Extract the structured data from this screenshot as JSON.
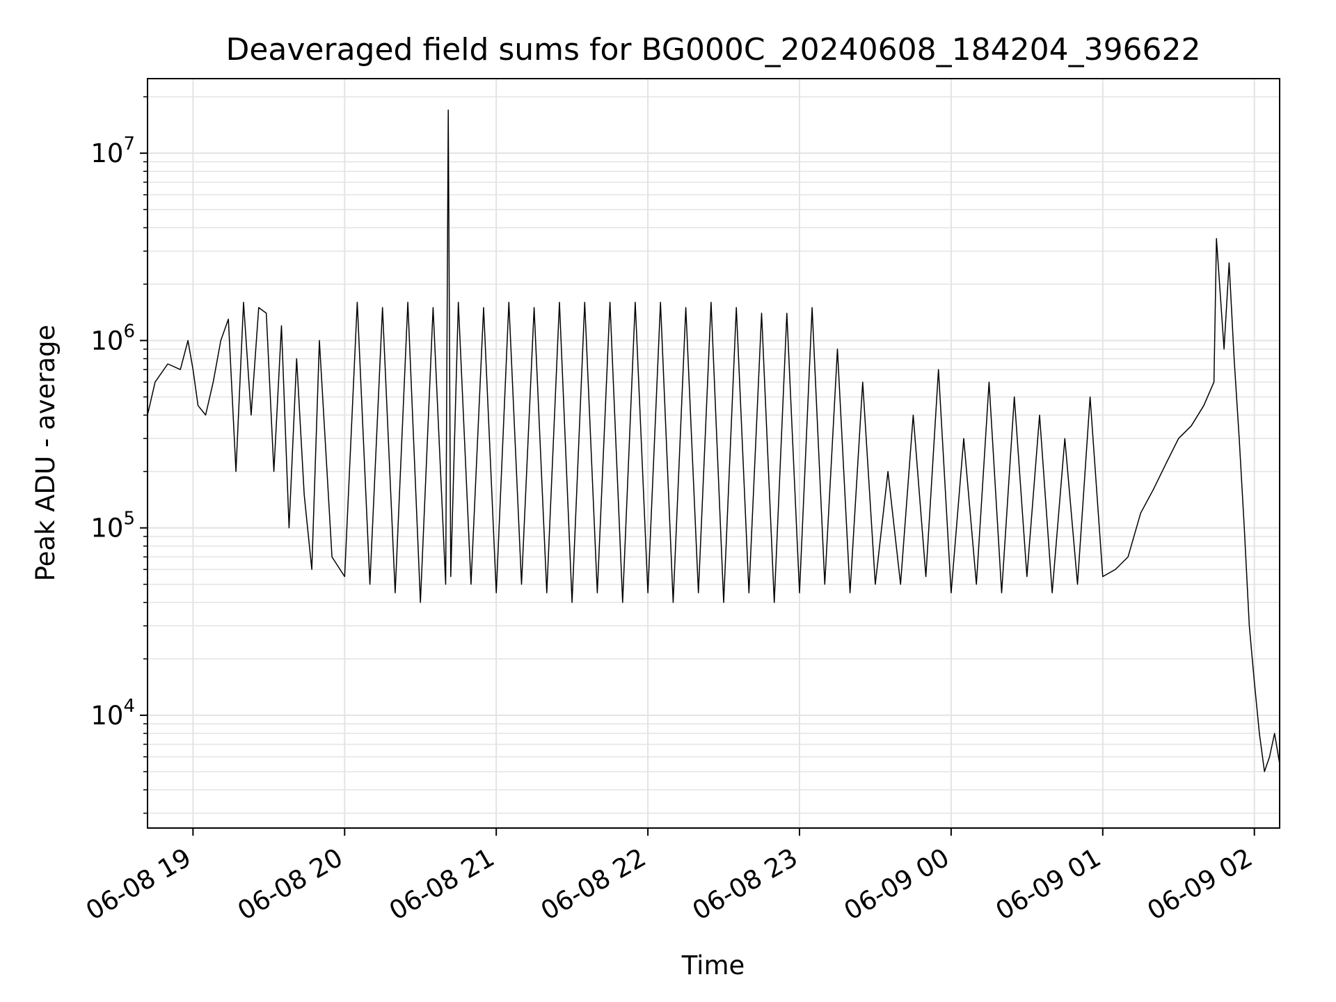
{
  "chart_data": {
    "type": "line",
    "title": "Deaveraged field sums for BG000C_20240608_184204_396622",
    "xlabel": "Time",
    "ylabel": "Peak ADU - average",
    "yscale": "log",
    "grid": true,
    "line_color": "#000000",
    "grid_color": "#e3e3e3",
    "xlim": [
      "2024-06-08 18:42",
      "2024-06-09 02:10"
    ],
    "ylim": [
      2500,
      25000000
    ],
    "x_ticks": [
      {
        "t": "2024-06-08 19:00",
        "label": "06-08 19"
      },
      {
        "t": "2024-06-08 20:00",
        "label": "06-08 20"
      },
      {
        "t": "2024-06-08 21:00",
        "label": "06-08 21"
      },
      {
        "t": "2024-06-08 22:00",
        "label": "06-08 22"
      },
      {
        "t": "2024-06-08 23:00",
        "label": "06-08 23"
      },
      {
        "t": "2024-06-09 00:00",
        "label": "06-09 00"
      },
      {
        "t": "2024-06-09 01:00",
        "label": "06-09 01"
      },
      {
        "t": "2024-06-09 02:00",
        "label": "06-09 02"
      }
    ],
    "y_ticks": [
      {
        "value": 10000,
        "base": "10",
        "exp": "4"
      },
      {
        "value": 100000,
        "base": "10",
        "exp": "5"
      },
      {
        "value": 1000000,
        "base": "10",
        "exp": "6"
      },
      {
        "value": 10000000,
        "base": "10",
        "exp": "7"
      }
    ],
    "series": [
      {
        "x": [
          "2024-06-08 18:42",
          "2024-06-08 18:45",
          "2024-06-08 18:50",
          "2024-06-08 18:55",
          "2024-06-08 18:58",
          "2024-06-08 19:00",
          "2024-06-08 19:02",
          "2024-06-08 19:05",
          "2024-06-08 19:08",
          "2024-06-08 19:11",
          "2024-06-08 19:14",
          "2024-06-08 19:17",
          "2024-06-08 19:20",
          "2024-06-08 19:23",
          "2024-06-08 19:26",
          "2024-06-08 19:29",
          "2024-06-08 19:32",
          "2024-06-08 19:35",
          "2024-06-08 19:38",
          "2024-06-08 19:41",
          "2024-06-08 19:44",
          "2024-06-08 19:47",
          "2024-06-08 19:50",
          "2024-06-08 19:55",
          "2024-06-08 20:00",
          "2024-06-08 20:05",
          "2024-06-08 20:10",
          "2024-06-08 20:15",
          "2024-06-08 20:20",
          "2024-06-08 20:25",
          "2024-06-08 20:30",
          "2024-06-08 20:35",
          "2024-06-08 20:40",
          "2024-06-08 20:41",
          "2024-06-08 20:42",
          "2024-06-08 20:45",
          "2024-06-08 20:50",
          "2024-06-08 20:55",
          "2024-06-08 21:00",
          "2024-06-08 21:05",
          "2024-06-08 21:10",
          "2024-06-08 21:15",
          "2024-06-08 21:20",
          "2024-06-08 21:25",
          "2024-06-08 21:30",
          "2024-06-08 21:35",
          "2024-06-08 21:40",
          "2024-06-08 21:45",
          "2024-06-08 21:50",
          "2024-06-08 21:55",
          "2024-06-08 22:00",
          "2024-06-08 22:05",
          "2024-06-08 22:10",
          "2024-06-08 22:15",
          "2024-06-08 22:20",
          "2024-06-08 22:25",
          "2024-06-08 22:30",
          "2024-06-08 22:35",
          "2024-06-08 22:40",
          "2024-06-08 22:45",
          "2024-06-08 22:50",
          "2024-06-08 22:55",
          "2024-06-08 23:00",
          "2024-06-08 23:05",
          "2024-06-08 23:10",
          "2024-06-08 23:15",
          "2024-06-08 23:20",
          "2024-06-08 23:25",
          "2024-06-08 23:30",
          "2024-06-08 23:35",
          "2024-06-08 23:40",
          "2024-06-08 23:45",
          "2024-06-08 23:50",
          "2024-06-08 23:55",
          "2024-06-09 00:00",
          "2024-06-09 00:05",
          "2024-06-09 00:10",
          "2024-06-09 00:15",
          "2024-06-09 00:20",
          "2024-06-09 00:25",
          "2024-06-09 00:30",
          "2024-06-09 00:35",
          "2024-06-09 00:40",
          "2024-06-09 00:45",
          "2024-06-09 00:50",
          "2024-06-09 00:55",
          "2024-06-09 01:00",
          "2024-06-09 01:05",
          "2024-06-09 01:10",
          "2024-06-09 01:15",
          "2024-06-09 01:20",
          "2024-06-09 01:25",
          "2024-06-09 01:30",
          "2024-06-09 01:35",
          "2024-06-09 01:40",
          "2024-06-09 01:44",
          "2024-06-09 01:45",
          "2024-06-09 01:48",
          "2024-06-09 01:50",
          "2024-06-09 01:52",
          "2024-06-09 01:54",
          "2024-06-09 01:56",
          "2024-06-09 01:58",
          "2024-06-09 02:00",
          "2024-06-09 02:02",
          "2024-06-09 02:04",
          "2024-06-09 02:06",
          "2024-06-09 02:08",
          "2024-06-09 02:10"
        ],
        "y": [
          400000,
          600000,
          750000,
          700000,
          1000000,
          700000,
          450000,
          400000,
          600000,
          1000000,
          1300000,
          200000,
          1600000,
          400000,
          1500000,
          1400000,
          200000,
          1200000,
          100000,
          800000,
          150000,
          60000,
          1000000,
          70000,
          55000,
          1600000,
          50000,
          1500000,
          45000,
          1600000,
          40000,
          1500000,
          50000,
          17000000,
          55000,
          1600000,
          50000,
          1500000,
          45000,
          1600000,
          50000,
          1500000,
          45000,
          1600000,
          40000,
          1600000,
          45000,
          1600000,
          40000,
          1600000,
          45000,
          1600000,
          40000,
          1500000,
          45000,
          1600000,
          40000,
          1500000,
          45000,
          1400000,
          40000,
          1400000,
          45000,
          1500000,
          50000,
          900000,
          45000,
          600000,
          50000,
          200000,
          50000,
          400000,
          55000,
          700000,
          45000,
          300000,
          50000,
          600000,
          45000,
          500000,
          55000,
          400000,
          45000,
          300000,
          50000,
          500000,
          55000,
          60000,
          70000,
          120000,
          160000,
          220000,
          300000,
          350000,
          450000,
          600000,
          3500000,
          900000,
          2600000,
          800000,
          300000,
          100000,
          30000,
          15000,
          8000,
          5000,
          6000,
          8000,
          5500
        ]
      }
    ]
  }
}
